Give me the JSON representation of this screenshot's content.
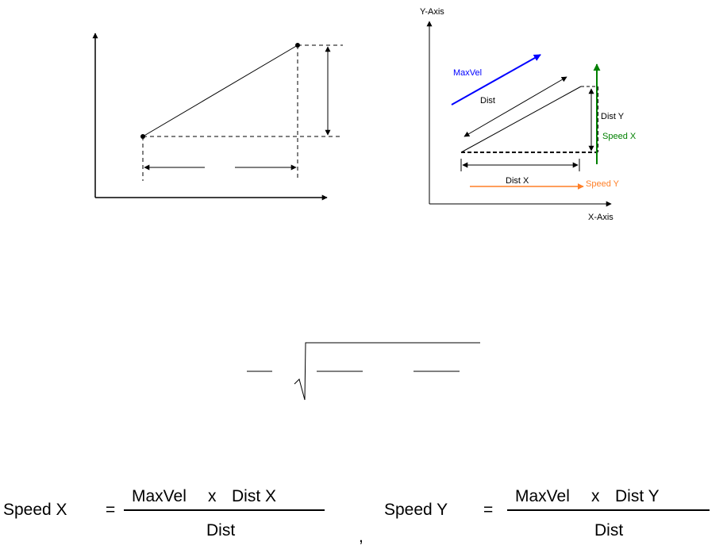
{
  "left_diagram": {},
  "right_diagram": {
    "y_axis_label": "Y-Axis",
    "x_axis_label": "X-Axis",
    "maxvel_label": "MaxVel",
    "dist_label": "Dist",
    "dist_y_label": "Dist Y",
    "speed_x_label": "Speed X",
    "dist_x_label": "Dist X",
    "speed_y_label": "Speed Y",
    "colors": {
      "maxvel": "#0000ff",
      "speed_x": "#008000",
      "speed_y": "#ff7f27",
      "line": "#000000"
    }
  },
  "formula_speed_x": {
    "lhs": "Speed X",
    "equals": "=",
    "numerator_left": "MaxVel",
    "times": "x",
    "numerator_right": "Dist X",
    "denominator": "Dist"
  },
  "separator": ",",
  "formula_speed_y": {
    "lhs": "Speed Y",
    "equals": "=",
    "numerator_left": "MaxVel",
    "times": "x",
    "numerator_right": "Dist Y",
    "denominator": "Dist"
  }
}
